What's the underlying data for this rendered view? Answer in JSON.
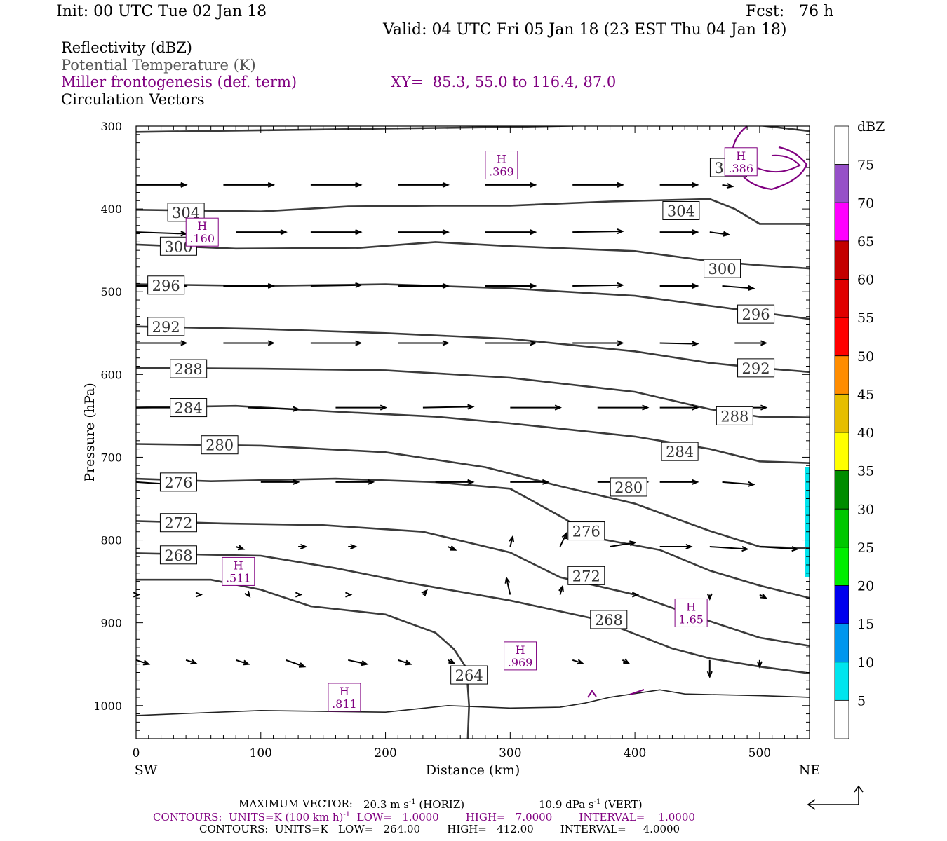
{
  "header": {
    "init": "Init: 00 UTC Tue 02 Jan 18",
    "fcst": "Fcst:   76 h",
    "valid": "Valid: 04 UTC Fri 05 Jan 18 (23 EST Thu 04 Jan 18)"
  },
  "legend": {
    "line1": "Reflectivity (dBZ)",
    "line2": "Potential Temperature (K)",
    "line3": "Miller frontogenesis (def. term)",
    "line4": "Circulation Vectors",
    "xy": "XY=  85.3, 55.0 to 116.4, 87.0"
  },
  "colors": {
    "theta": "#3a3a3a",
    "fronto": "#800080",
    "vectors": "#000000",
    "grey_text": "#555555"
  },
  "chart_data": {
    "type": "line",
    "xlabel": "Distance (km)",
    "ylabel": "Pressure (hPa)",
    "xlim": [
      0,
      540
    ],
    "ylim": [
      1040,
      300
    ],
    "x_ticks": [
      0,
      100,
      200,
      300,
      400,
      500
    ],
    "y_ticks": [
      300,
      400,
      500,
      600,
      700,
      800,
      900,
      1000
    ],
    "left_end": "SW",
    "right_end": "NE",
    "colorbar": {
      "unit": "dBZ",
      "levels": [
        5,
        10,
        15,
        20,
        25,
        30,
        35,
        40,
        45,
        50,
        55,
        60,
        65,
        70,
        75
      ],
      "colors": [
        "#00e5ee",
        "#0096ee",
        "#0000ee",
        "#00ee00",
        "#00c800",
        "#008c00",
        "#ffff00",
        "#e6be00",
        "#ff8c00",
        "#ff0000",
        "#e00000",
        "#c40000",
        "#ff00ff",
        "#9650c8",
        "#ffffff"
      ]
    },
    "theta_contours": [
      {
        "label": "308",
        "points": [
          [
            0,
            307
          ],
          [
            100,
            305
          ],
          [
            200,
            303
          ],
          [
            300,
            301
          ],
          [
            400,
            298
          ],
          [
            480,
            297
          ],
          [
            500,
            299
          ],
          [
            540,
            306
          ]
        ],
        "label_at": [
          475,
          350
        ]
      },
      {
        "label": "304",
        "points": [
          [
            0,
            401
          ],
          [
            100,
            403
          ],
          [
            170,
            397
          ],
          [
            240,
            396
          ],
          [
            300,
            396
          ],
          [
            380,
            391
          ],
          [
            460,
            388
          ],
          [
            480,
            400
          ],
          [
            500,
            418
          ],
          [
            540,
            418
          ]
        ],
        "label_at": [
          40,
          404
        ]
      },
      {
        "label": "304",
        "points": [],
        "label_at": [
          437,
          402
        ]
      },
      {
        "label": "300",
        "points": [
          [
            0,
            443
          ],
          [
            80,
            448
          ],
          [
            180,
            447
          ],
          [
            240,
            440
          ],
          [
            300,
            445
          ],
          [
            400,
            451
          ],
          [
            460,
            463
          ],
          [
            500,
            468
          ],
          [
            540,
            472
          ]
        ],
        "label_at": [
          34,
          445
        ]
      },
      {
        "label": "300",
        "points": [],
        "label_at": [
          470,
          472
        ]
      },
      {
        "label": "296",
        "points": [
          [
            0,
            491
          ],
          [
            100,
            493
          ],
          [
            200,
            491
          ],
          [
            300,
            496
          ],
          [
            400,
            505
          ],
          [
            460,
            517
          ],
          [
            500,
            525
          ],
          [
            540,
            533
          ]
        ],
        "label_at": [
          24,
          492
        ]
      },
      {
        "label": "296",
        "points": [],
        "label_at": [
          497,
          527
        ]
      },
      {
        "label": "292",
        "points": [
          [
            0,
            542
          ],
          [
            100,
            545
          ],
          [
            200,
            550
          ],
          [
            300,
            557
          ],
          [
            400,
            572
          ],
          [
            460,
            586
          ],
          [
            500,
            592
          ],
          [
            540,
            597
          ]
        ],
        "label_at": [
          24,
          542
        ]
      },
      {
        "label": "292",
        "points": [],
        "label_at": [
          497,
          592
        ]
      },
      {
        "label": "288",
        "points": [
          [
            0,
            592
          ],
          [
            100,
            593
          ],
          [
            200,
            595
          ],
          [
            300,
            604
          ],
          [
            400,
            621
          ],
          [
            460,
            642
          ],
          [
            500,
            651
          ],
          [
            540,
            652
          ]
        ],
        "label_at": [
          42,
          593
        ]
      },
      {
        "label": "288",
        "points": [],
        "label_at": [
          480,
          650
        ]
      },
      {
        "label": "284",
        "points": [
          [
            0,
            640
          ],
          [
            80,
            638
          ],
          [
            160,
            645
          ],
          [
            240,
            651
          ],
          [
            300,
            659
          ],
          [
            400,
            675
          ],
          [
            460,
            690
          ],
          [
            500,
            705
          ],
          [
            540,
            707
          ]
        ],
        "label_at": [
          42,
          640
        ]
      },
      {
        "label": "284",
        "points": [],
        "label_at": [
          436,
          693
        ]
      },
      {
        "label": "280",
        "points": [
          [
            0,
            684
          ],
          [
            100,
            686
          ],
          [
            200,
            694
          ],
          [
            280,
            712
          ],
          [
            340,
            735
          ],
          [
            400,
            756
          ],
          [
            460,
            789
          ],
          [
            500,
            808
          ],
          [
            540,
            810
          ]
        ],
        "label_at": [
          67,
          685
        ]
      },
      {
        "label": "280",
        "points": [],
        "label_at": [
          395,
          736
        ]
      },
      {
        "label": "276",
        "points": [
          [
            0,
            726
          ],
          [
            60,
            729
          ],
          [
            160,
            726
          ],
          [
            240,
            730
          ],
          [
            300,
            738
          ],
          [
            340,
            771
          ],
          [
            370,
            798
          ],
          [
            420,
            812
          ],
          [
            460,
            837
          ],
          [
            500,
            855
          ],
          [
            540,
            870
          ]
        ],
        "label_at": [
          34,
          730
        ]
      },
      {
        "label": "276",
        "points": [],
        "label_at": [
          361,
          789
        ]
      },
      {
        "label": "272",
        "points": [
          [
            0,
            777
          ],
          [
            70,
            780
          ],
          [
            150,
            782
          ],
          [
            230,
            790
          ],
          [
            300,
            815
          ],
          [
            340,
            845
          ],
          [
            400,
            866
          ],
          [
            460,
            898
          ],
          [
            500,
            918
          ],
          [
            540,
            928
          ]
        ],
        "label_at": [
          34,
          779
        ]
      },
      {
        "label": "272",
        "points": [],
        "label_at": [
          361,
          843
        ]
      },
      {
        "label": "268",
        "points": [
          [
            0,
            816
          ],
          [
            100,
            819
          ],
          [
            160,
            834
          ],
          [
            220,
            852
          ],
          [
            300,
            873
          ],
          [
            370,
            896
          ],
          [
            430,
            931
          ],
          [
            460,
            943
          ],
          [
            500,
            953
          ],
          [
            540,
            961
          ]
        ],
        "label_at": [
          34,
          818
        ]
      },
      {
        "label": "268",
        "points": [],
        "label_at": [
          379,
          896
        ]
      },
      {
        "label": "264",
        "points": [
          [
            0,
            848
          ],
          [
            60,
            848
          ],
          [
            100,
            860
          ],
          [
            140,
            880
          ],
          [
            200,
            890
          ],
          [
            240,
            912
          ],
          [
            255,
            932
          ],
          [
            265,
            955
          ],
          [
            267,
            1000
          ],
          [
            266,
            1040
          ]
        ],
        "label_at": [
          267,
          963
        ]
      },
      {
        "label": "264",
        "points": [],
        "label_at": []
      }
    ],
    "terrain": [
      [
        0,
        1012
      ],
      [
        100,
        1006
      ],
      [
        200,
        1008
      ],
      [
        250,
        1000
      ],
      [
        300,
        1003
      ],
      [
        340,
        1002
      ],
      [
        360,
        997
      ],
      [
        380,
        990
      ],
      [
        420,
        981
      ],
      [
        440,
        986
      ],
      [
        500,
        988
      ],
      [
        540,
        990
      ]
    ],
    "fronto_maxima": [
      {
        "label": "H",
        "value": ".369",
        "at": [
          293,
          347
        ]
      },
      {
        "label": "H",
        "value": ".386",
        "at": [
          485,
          343
        ]
      },
      {
        "label": "H",
        "value": ".160",
        "at": [
          53,
          428
        ]
      },
      {
        "label": "H",
        "value": ".511",
        "at": [
          82,
          838
        ]
      },
      {
        "label": "H",
        "value": "1.65",
        "at": [
          445,
          888
        ]
      },
      {
        "label": "H",
        "value": ".969",
        "at": [
          308,
          940
        ]
      },
      {
        "label": "H",
        "value": ".811",
        "at": [
          167,
          990
        ]
      }
    ],
    "vectors": [
      [
        0,
        371,
        40,
        0
      ],
      [
        70,
        371,
        40,
        0
      ],
      [
        140,
        371,
        40,
        0
      ],
      [
        210,
        371,
        40,
        0
      ],
      [
        280,
        371,
        40,
        0
      ],
      [
        350,
        371,
        40,
        0
      ],
      [
        420,
        371,
        30,
        0
      ],
      [
        470,
        371,
        8,
        2
      ],
      [
        0,
        428,
        40,
        2
      ],
      [
        80,
        428,
        40,
        0
      ],
      [
        140,
        428,
        40,
        0
      ],
      [
        210,
        428,
        40,
        0
      ],
      [
        280,
        428,
        40,
        0
      ],
      [
        350,
        428,
        40,
        -1
      ],
      [
        420,
        428,
        30,
        0
      ],
      [
        460,
        428,
        15,
        3
      ],
      [
        0,
        493,
        40,
        0
      ],
      [
        70,
        493,
        40,
        0
      ],
      [
        140,
        493,
        40,
        -1
      ],
      [
        210,
        493,
        40,
        0
      ],
      [
        280,
        493,
        40,
        0
      ],
      [
        350,
        493,
        40,
        -1
      ],
      [
        420,
        493,
        30,
        0
      ],
      [
        470,
        493,
        25,
        3
      ],
      [
        0,
        562,
        40,
        0
      ],
      [
        70,
        562,
        40,
        0
      ],
      [
        140,
        562,
        40,
        0
      ],
      [
        210,
        562,
        40,
        0
      ],
      [
        280,
        562,
        40,
        0
      ],
      [
        350,
        562,
        40,
        0
      ],
      [
        420,
        562,
        30,
        1
      ],
      [
        480,
        562,
        25,
        0
      ],
      [
        0,
        640,
        40,
        0
      ],
      [
        90,
        640,
        40,
        2
      ],
      [
        160,
        640,
        40,
        0
      ],
      [
        230,
        640,
        40,
        -1
      ],
      [
        300,
        640,
        40,
        0
      ],
      [
        370,
        640,
        40,
        0
      ],
      [
        420,
        640,
        30,
        0
      ],
      [
        480,
        640,
        25,
        0
      ],
      [
        0,
        730,
        30,
        3
      ],
      [
        100,
        730,
        30,
        0
      ],
      [
        160,
        730,
        30,
        0
      ],
      [
        240,
        730,
        30,
        0
      ],
      [
        300,
        730,
        30,
        0
      ],
      [
        370,
        730,
        40,
        0
      ],
      [
        420,
        730,
        30,
        0
      ],
      [
        470,
        730,
        25,
        3
      ],
      [
        80,
        808,
        6,
        3
      ],
      [
        130,
        808,
        6,
        0
      ],
      [
        170,
        808,
        6,
        0
      ],
      [
        250,
        808,
        6,
        4
      ],
      [
        300,
        808,
        2,
        -12
      ],
      [
        340,
        808,
        5,
        -16
      ],
      [
        380,
        808,
        20,
        -5
      ],
      [
        420,
        808,
        25,
        0
      ],
      [
        460,
        808,
        30,
        3
      ],
      [
        500,
        808,
        30,
        3
      ],
      [
        0,
        866,
        2,
        0
      ],
      [
        50,
        866,
        2,
        0
      ],
      [
        90,
        866,
        1,
        2
      ],
      [
        130,
        866,
        2,
        0
      ],
      [
        170,
        866,
        2,
        0
      ],
      [
        230,
        866,
        3,
        -5
      ],
      [
        300,
        866,
        -3,
        -20
      ],
      [
        340,
        866,
        2,
        -10
      ],
      [
        400,
        866,
        2,
        0
      ],
      [
        460,
        866,
        0,
        5
      ],
      [
        500,
        866,
        5,
        4
      ],
      [
        0,
        945,
        10,
        5
      ],
      [
        40,
        945,
        8,
        4
      ],
      [
        80,
        945,
        10,
        5
      ],
      [
        120,
        945,
        15,
        8
      ],
      [
        170,
        945,
        15,
        5
      ],
      [
        210,
        945,
        10,
        5
      ],
      [
        250,
        945,
        5,
        4
      ],
      [
        300,
        945,
        4,
        -4
      ],
      [
        350,
        945,
        8,
        4
      ],
      [
        390,
        945,
        5,
        4
      ],
      [
        460,
        945,
        0,
        20
      ],
      [
        500,
        945,
        0,
        8
      ]
    ]
  },
  "footer": {
    "max_vector_label": "MAXIMUM VECTOR:",
    "max_vector_h": "20.3 m s",
    "max_vector_h_unit": " (HORIZ)",
    "max_vector_v": "10.9 dPa s",
    "max_vector_v_unit": " (VERT)",
    "contours1": "CONTOURS:  UNITS=K (100 km h)",
    "contours1_rest": "  LOW=   1.0000        HIGH=   7.0000        INTERVAL=    1.0000",
    "contours2": "CONTOURS:  UNITS=K   LOW=   264.00        HIGH=   412.00        INTERVAL=     4.0000",
    "sup": "-1"
  }
}
